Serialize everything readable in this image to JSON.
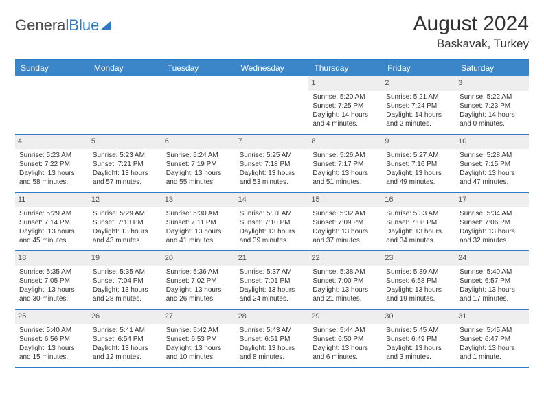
{
  "brand": {
    "part1": "General",
    "part2": "Blue"
  },
  "title": "August 2024",
  "location": "Baskavak, Turkey",
  "colors": {
    "header_bg": "#3b86c8",
    "border": "#2f7ac4",
    "daynum_bg": "#eeeeee",
    "text": "#333333"
  },
  "day_names": [
    "Sunday",
    "Monday",
    "Tuesday",
    "Wednesday",
    "Thursday",
    "Friday",
    "Saturday"
  ],
  "weeks": [
    [
      null,
      null,
      null,
      null,
      {
        "n": "1",
        "sr": "5:20 AM",
        "ss": "7:25 PM",
        "dl": "14 hours and 4 minutes."
      },
      {
        "n": "2",
        "sr": "5:21 AM",
        "ss": "7:24 PM",
        "dl": "14 hours and 2 minutes."
      },
      {
        "n": "3",
        "sr": "5:22 AM",
        "ss": "7:23 PM",
        "dl": "14 hours and 0 minutes."
      }
    ],
    [
      {
        "n": "4",
        "sr": "5:23 AM",
        "ss": "7:22 PM",
        "dl": "13 hours and 58 minutes."
      },
      {
        "n": "5",
        "sr": "5:23 AM",
        "ss": "7:21 PM",
        "dl": "13 hours and 57 minutes."
      },
      {
        "n": "6",
        "sr": "5:24 AM",
        "ss": "7:19 PM",
        "dl": "13 hours and 55 minutes."
      },
      {
        "n": "7",
        "sr": "5:25 AM",
        "ss": "7:18 PM",
        "dl": "13 hours and 53 minutes."
      },
      {
        "n": "8",
        "sr": "5:26 AM",
        "ss": "7:17 PM",
        "dl": "13 hours and 51 minutes."
      },
      {
        "n": "9",
        "sr": "5:27 AM",
        "ss": "7:16 PM",
        "dl": "13 hours and 49 minutes."
      },
      {
        "n": "10",
        "sr": "5:28 AM",
        "ss": "7:15 PM",
        "dl": "13 hours and 47 minutes."
      }
    ],
    [
      {
        "n": "11",
        "sr": "5:29 AM",
        "ss": "7:14 PM",
        "dl": "13 hours and 45 minutes."
      },
      {
        "n": "12",
        "sr": "5:29 AM",
        "ss": "7:13 PM",
        "dl": "13 hours and 43 minutes."
      },
      {
        "n": "13",
        "sr": "5:30 AM",
        "ss": "7:11 PM",
        "dl": "13 hours and 41 minutes."
      },
      {
        "n": "14",
        "sr": "5:31 AM",
        "ss": "7:10 PM",
        "dl": "13 hours and 39 minutes."
      },
      {
        "n": "15",
        "sr": "5:32 AM",
        "ss": "7:09 PM",
        "dl": "13 hours and 37 minutes."
      },
      {
        "n": "16",
        "sr": "5:33 AM",
        "ss": "7:08 PM",
        "dl": "13 hours and 34 minutes."
      },
      {
        "n": "17",
        "sr": "5:34 AM",
        "ss": "7:06 PM",
        "dl": "13 hours and 32 minutes."
      }
    ],
    [
      {
        "n": "18",
        "sr": "5:35 AM",
        "ss": "7:05 PM",
        "dl": "13 hours and 30 minutes."
      },
      {
        "n": "19",
        "sr": "5:35 AM",
        "ss": "7:04 PM",
        "dl": "13 hours and 28 minutes."
      },
      {
        "n": "20",
        "sr": "5:36 AM",
        "ss": "7:02 PM",
        "dl": "13 hours and 26 minutes."
      },
      {
        "n": "21",
        "sr": "5:37 AM",
        "ss": "7:01 PM",
        "dl": "13 hours and 24 minutes."
      },
      {
        "n": "22",
        "sr": "5:38 AM",
        "ss": "7:00 PM",
        "dl": "13 hours and 21 minutes."
      },
      {
        "n": "23",
        "sr": "5:39 AM",
        "ss": "6:58 PM",
        "dl": "13 hours and 19 minutes."
      },
      {
        "n": "24",
        "sr": "5:40 AM",
        "ss": "6:57 PM",
        "dl": "13 hours and 17 minutes."
      }
    ],
    [
      {
        "n": "25",
        "sr": "5:40 AM",
        "ss": "6:56 PM",
        "dl": "13 hours and 15 minutes."
      },
      {
        "n": "26",
        "sr": "5:41 AM",
        "ss": "6:54 PM",
        "dl": "13 hours and 12 minutes."
      },
      {
        "n": "27",
        "sr": "5:42 AM",
        "ss": "6:53 PM",
        "dl": "13 hours and 10 minutes."
      },
      {
        "n": "28",
        "sr": "5:43 AM",
        "ss": "6:51 PM",
        "dl": "13 hours and 8 minutes."
      },
      {
        "n": "29",
        "sr": "5:44 AM",
        "ss": "6:50 PM",
        "dl": "13 hours and 6 minutes."
      },
      {
        "n": "30",
        "sr": "5:45 AM",
        "ss": "6:49 PM",
        "dl": "13 hours and 3 minutes."
      },
      {
        "n": "31",
        "sr": "5:45 AM",
        "ss": "6:47 PM",
        "dl": "13 hours and 1 minute."
      }
    ]
  ],
  "labels": {
    "sunrise": "Sunrise:",
    "sunset": "Sunset:",
    "daylight": "Daylight:"
  }
}
